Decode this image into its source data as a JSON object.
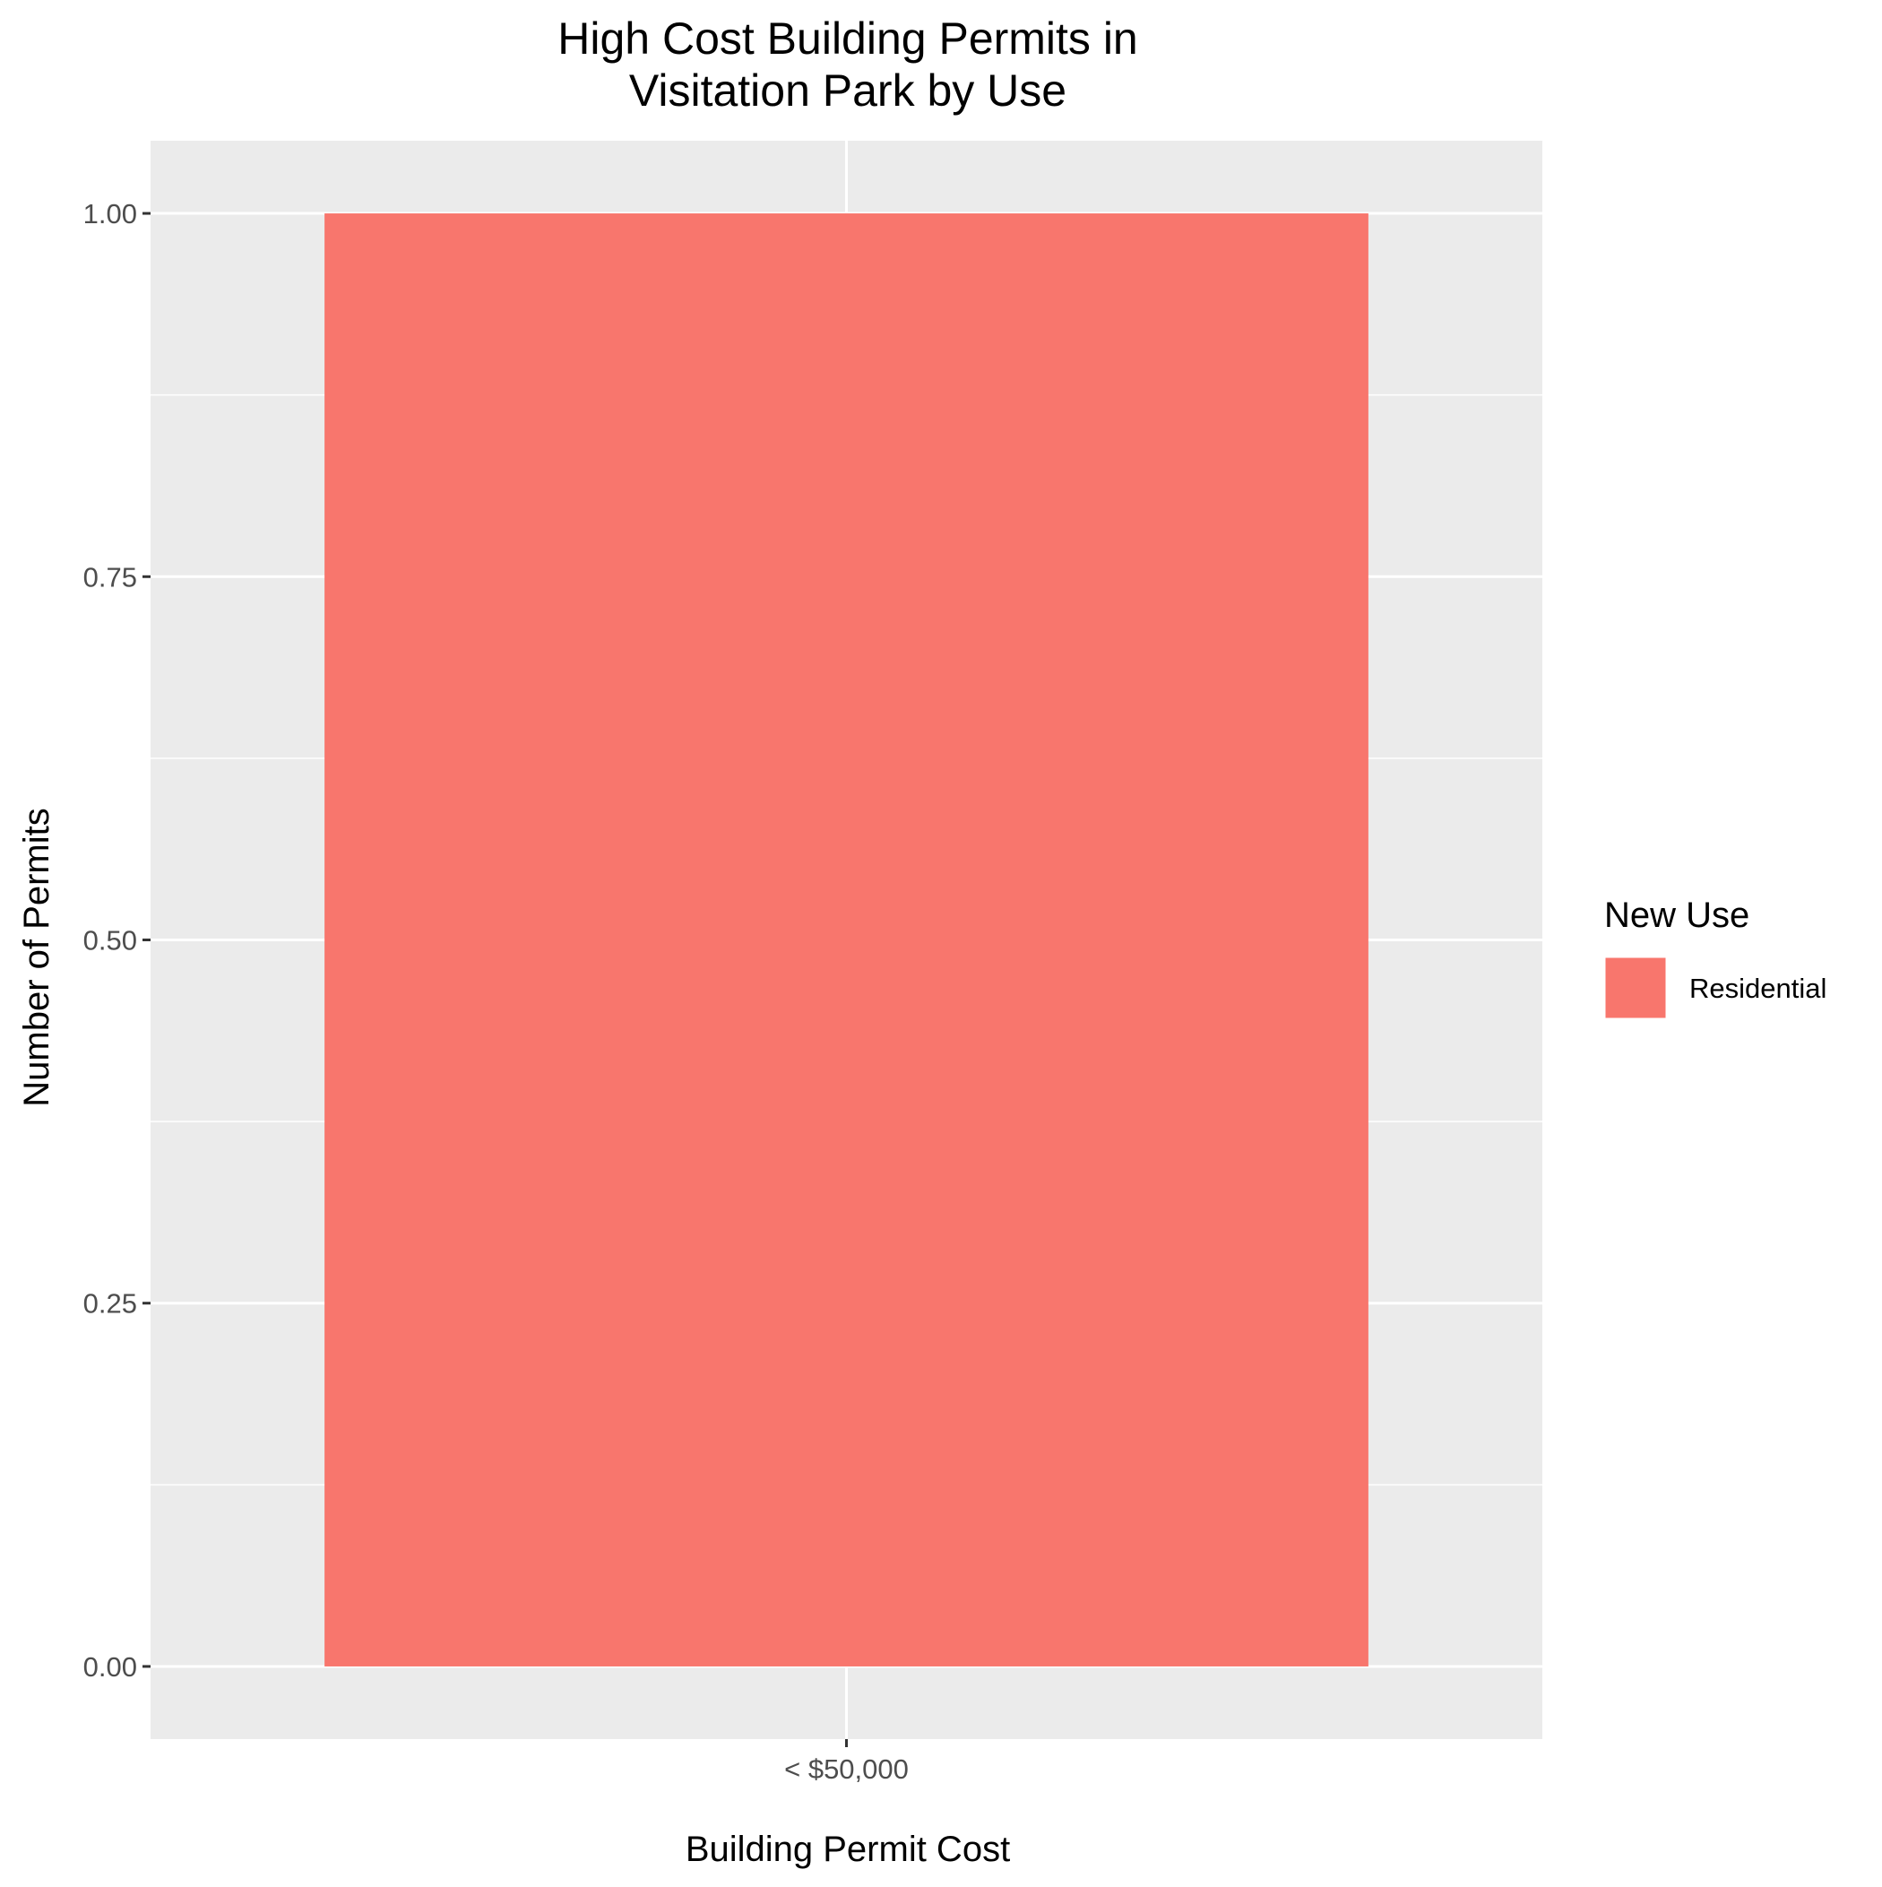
{
  "chart_data": {
    "type": "bar",
    "title_lines": [
      "High Cost Building Permits in",
      "Visitation Park by Use"
    ],
    "xlabel": "Building Permit Cost",
    "ylabel": "Number of Permits",
    "categories": [
      "< $50,000"
    ],
    "series": [
      {
        "name": "Residential",
        "values": [
          1
        ],
        "color": "#F8766D"
      }
    ],
    "ylim": [
      -0.05,
      1.05
    ],
    "yticks": [
      0,
      0.25,
      0.5,
      0.75,
      1
    ],
    "ytick_labels": [
      "0.00",
      "0.25",
      "0.50",
      "0.75",
      "1.00"
    ],
    "grid": true,
    "panel_background": "#EBEBEB",
    "grid_color": "#FFFFFF",
    "legend": {
      "title": "New Use",
      "position": "right"
    }
  }
}
